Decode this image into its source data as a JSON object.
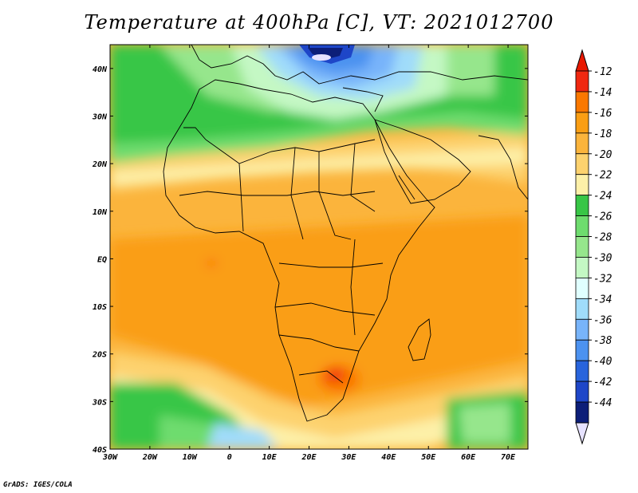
{
  "title": "Temperature at 400hPa [C], VT: 2021012700",
  "credit": "GrADS: IGES/COLA",
  "map": {
    "lon_range": [
      -30,
      75
    ],
    "lat_range": [
      -40,
      45
    ],
    "lon_ticks": [
      {
        "lon": -30,
        "label": "30W"
      },
      {
        "lon": -20,
        "label": "20W"
      },
      {
        "lon": -10,
        "label": "10W"
      },
      {
        "lon": 0,
        "label": "0"
      },
      {
        "lon": 10,
        "label": "10E"
      },
      {
        "lon": 20,
        "label": "20E"
      },
      {
        "lon": 30,
        "label": "30E"
      },
      {
        "lon": 40,
        "label": "40E"
      },
      {
        "lon": 50,
        "label": "50E"
      },
      {
        "lon": 60,
        "label": "60E"
      },
      {
        "lon": 70,
        "label": "70E"
      }
    ],
    "lat_ticks": [
      {
        "lat": 40,
        "label": "40N"
      },
      {
        "lat": 30,
        "label": "30N"
      },
      {
        "lat": 20,
        "label": "20N"
      },
      {
        "lat": 10,
        "label": "10N"
      },
      {
        "lat": 0,
        "label": "EQ"
      },
      {
        "lat": -10,
        "label": "10S"
      },
      {
        "lat": -20,
        "label": "20S"
      },
      {
        "lat": -30,
        "label": "30S"
      },
      {
        "lat": -40,
        "label": "40S"
      }
    ]
  },
  "colorbar": {
    "labels": [
      "-12",
      "-14",
      "-16",
      "-18",
      "-20",
      "-22",
      "-24",
      "-26",
      "-28",
      "-30",
      "-32",
      "-34",
      "-36",
      "-38",
      "-40",
      "-42",
      "-44"
    ],
    "colors": [
      "#f02810",
      "#fa7800",
      "#fa9e14",
      "#fbb43c",
      "#fdd26e",
      "#fdf0a8",
      "#38c646",
      "#6edc6e",
      "#96e68c",
      "#c4f8c4",
      "#e0ffff",
      "#a0dcfa",
      "#78b4fa",
      "#4c92f0",
      "#2864dc",
      "#1e46c8",
      "#0c1e78"
    ],
    "top_color": "#e81800",
    "bottom_color": "#e6e2ff"
  }
}
